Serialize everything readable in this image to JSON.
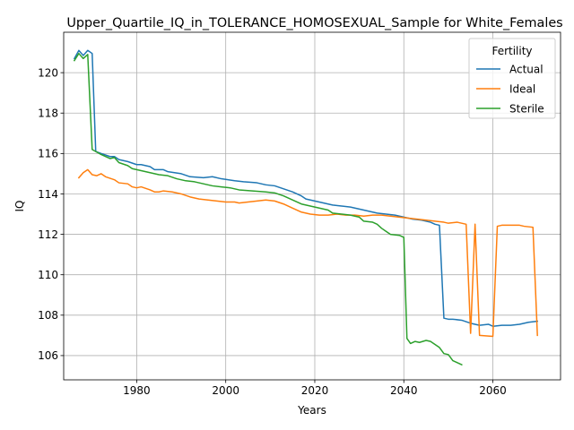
{
  "chart_data": {
    "type": "line",
    "title": "Upper_Quartile_IQ_in_TOLERANCE_HOMOSEXUAL_Sample for White_Females",
    "xlabel": "Years",
    "ylabel": "IQ",
    "xlim": [
      1963.6,
      2075.2
    ],
    "ylim": [
      104.8,
      122.0
    ],
    "xticks": [
      1980,
      2000,
      2020,
      2040,
      2060
    ],
    "xtick_labels": [
      "1980",
      "2000",
      "2020",
      "2040",
      "2060"
    ],
    "yticks": [
      106,
      108,
      110,
      112,
      114,
      116,
      118,
      120
    ],
    "ytick_labels": [
      "106",
      "108",
      "110",
      "112",
      "114",
      "116",
      "118",
      "120"
    ],
    "grid": true,
    "legend": {
      "title": "Fertility",
      "position": "top-right"
    },
    "series": [
      {
        "name": "Actual",
        "color": "#1f77b4",
        "points": [
          [
            1966,
            120.7
          ],
          [
            1967,
            121.1
          ],
          [
            1968,
            120.85
          ],
          [
            1969,
            121.1
          ],
          [
            1970,
            120.95
          ],
          [
            1970.8,
            116.1
          ],
          [
            1972,
            116.0
          ],
          [
            1974,
            115.85
          ],
          [
            1975,
            115.85
          ],
          [
            1976,
            115.7
          ],
          [
            1978,
            115.6
          ],
          [
            1980,
            115.45
          ],
          [
            1981,
            115.45
          ],
          [
            1983,
            115.35
          ],
          [
            1984,
            115.2
          ],
          [
            1986,
            115.2
          ],
          [
            1987,
            115.1
          ],
          [
            1990,
            115.0
          ],
          [
            1992,
            114.85
          ],
          [
            1995,
            114.8
          ],
          [
            1997,
            114.85
          ],
          [
            1999,
            114.75
          ],
          [
            2002,
            114.65
          ],
          [
            2004,
            114.6
          ],
          [
            2007,
            114.55
          ],
          [
            2009,
            114.45
          ],
          [
            2011,
            114.4
          ],
          [
            2013,
            114.25
          ],
          [
            2015,
            114.1
          ],
          [
            2017,
            113.9
          ],
          [
            2018,
            113.75
          ],
          [
            2020,
            113.65
          ],
          [
            2022,
            113.55
          ],
          [
            2024,
            113.45
          ],
          [
            2026,
            113.4
          ],
          [
            2028,
            113.35
          ],
          [
            2030,
            113.25
          ],
          [
            2032,
            113.15
          ],
          [
            2034,
            113.05
          ],
          [
            2036,
            113.0
          ],
          [
            2038,
            112.95
          ],
          [
            2040,
            112.85
          ],
          [
            2042,
            112.75
          ],
          [
            2044,
            112.7
          ],
          [
            2046,
            112.6
          ],
          [
            2047,
            112.5
          ],
          [
            2048,
            112.45
          ],
          [
            2049,
            107.85
          ],
          [
            2050,
            107.8
          ],
          [
            2051,
            107.8
          ],
          [
            2053,
            107.75
          ],
          [
            2055,
            107.6
          ],
          [
            2057,
            107.5
          ],
          [
            2059,
            107.55
          ],
          [
            2060,
            107.45
          ],
          [
            2062,
            107.5
          ],
          [
            2064,
            107.5
          ],
          [
            2066,
            107.55
          ],
          [
            2068,
            107.65
          ],
          [
            2070,
            107.7
          ]
        ]
      },
      {
        "name": "Ideal",
        "color": "#ff7f0e",
        "points": [
          [
            1967,
            114.8
          ],
          [
            1968,
            115.05
          ],
          [
            1969,
            115.2
          ],
          [
            1970,
            114.95
          ],
          [
            1971,
            114.9
          ],
          [
            1972,
            115.0
          ],
          [
            1973,
            114.85
          ],
          [
            1975,
            114.7
          ],
          [
            1976,
            114.55
          ],
          [
            1978,
            114.5
          ],
          [
            1979,
            114.35
          ],
          [
            1980,
            114.3
          ],
          [
            1981,
            114.35
          ],
          [
            1983,
            114.2
          ],
          [
            1984,
            114.1
          ],
          [
            1985,
            114.1
          ],
          [
            1986,
            114.15
          ],
          [
            1988,
            114.1
          ],
          [
            1990,
            114.0
          ],
          [
            1992,
            113.85
          ],
          [
            1994,
            113.75
          ],
          [
            1996,
            113.7
          ],
          [
            1998,
            113.65
          ],
          [
            2000,
            113.6
          ],
          [
            2002,
            113.6
          ],
          [
            2003,
            113.55
          ],
          [
            2005,
            113.6
          ],
          [
            2007,
            113.65
          ],
          [
            2009,
            113.7
          ],
          [
            2011,
            113.65
          ],
          [
            2013,
            113.5
          ],
          [
            2015,
            113.3
          ],
          [
            2017,
            113.1
          ],
          [
            2019,
            113.0
          ],
          [
            2021,
            112.95
          ],
          [
            2023,
            112.95
          ],
          [
            2025,
            113.0
          ],
          [
            2027,
            112.95
          ],
          [
            2029,
            112.95
          ],
          [
            2031,
            112.9
          ],
          [
            2033,
            112.95
          ],
          [
            2035,
            112.95
          ],
          [
            2037,
            112.9
          ],
          [
            2039,
            112.85
          ],
          [
            2041,
            112.8
          ],
          [
            2043,
            112.75
          ],
          [
            2045,
            112.7
          ],
          [
            2047,
            112.65
          ],
          [
            2049,
            112.6
          ],
          [
            2050,
            112.55
          ],
          [
            2052,
            112.6
          ],
          [
            2054,
            112.5
          ],
          [
            2055,
            107.1
          ],
          [
            2056,
            112.5
          ],
          [
            2057,
            107.0
          ],
          [
            2060,
            106.95
          ],
          [
            2061,
            112.4
          ],
          [
            2062,
            112.45
          ],
          [
            2064,
            112.45
          ],
          [
            2066,
            112.45
          ],
          [
            2067,
            112.4
          ],
          [
            2069,
            112.35
          ],
          [
            2070,
            107.0
          ]
        ]
      },
      {
        "name": "Sterile",
        "color": "#2ca02c",
        "points": [
          [
            1966,
            120.6
          ],
          [
            1967,
            120.95
          ],
          [
            1968,
            120.7
          ],
          [
            1969,
            120.9
          ],
          [
            1970,
            116.2
          ],
          [
            1972,
            115.95
          ],
          [
            1974,
            115.75
          ],
          [
            1975,
            115.8
          ],
          [
            1976,
            115.55
          ],
          [
            1978,
            115.4
          ],
          [
            1979,
            115.25
          ],
          [
            1981,
            115.15
          ],
          [
            1983,
            115.05
          ],
          [
            1985,
            114.95
          ],
          [
            1987,
            114.9
          ],
          [
            1989,
            114.75
          ],
          [
            1991,
            114.65
          ],
          [
            1993,
            114.6
          ],
          [
            1995,
            114.5
          ],
          [
            1997,
            114.4
          ],
          [
            1999,
            114.35
          ],
          [
            2001,
            114.3
          ],
          [
            2003,
            114.2
          ],
          [
            2006,
            114.15
          ],
          [
            2009,
            114.1
          ],
          [
            2011,
            114.05
          ],
          [
            2013,
            113.9
          ],
          [
            2015,
            113.7
          ],
          [
            2017,
            113.5
          ],
          [
            2019,
            113.4
          ],
          [
            2021,
            113.3
          ],
          [
            2023,
            113.2
          ],
          [
            2024,
            113.05
          ],
          [
            2026,
            113.0
          ],
          [
            2028,
            112.95
          ],
          [
            2030,
            112.85
          ],
          [
            2031,
            112.65
          ],
          [
            2033,
            112.6
          ],
          [
            2034,
            112.5
          ],
          [
            2035,
            112.3
          ],
          [
            2036,
            112.15
          ],
          [
            2037,
            112.0
          ],
          [
            2039,
            111.95
          ],
          [
            2040,
            111.85
          ],
          [
            2040.7,
            106.85
          ],
          [
            2041.5,
            106.6
          ],
          [
            2042.5,
            106.7
          ],
          [
            2043.5,
            106.65
          ],
          [
            2045,
            106.75
          ],
          [
            2046,
            106.7
          ],
          [
            2047,
            106.55
          ],
          [
            2048,
            106.4
          ],
          [
            2049,
            106.1
          ],
          [
            2050,
            106.05
          ],
          [
            2051,
            105.75
          ],
          [
            2052,
            105.65
          ],
          [
            2053,
            105.55
          ]
        ]
      }
    ]
  }
}
